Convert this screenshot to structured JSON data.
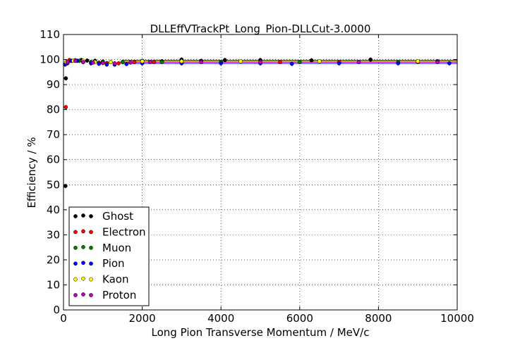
{
  "chart_data": {
    "type": "scatter",
    "title": "DLLEffVTrackPt_Long_Pion-DLLCut-3.0000",
    "xlabel": "Long Pion Transverse Momentum / MeV/c",
    "ylabel": "Efficiency / %",
    "xlim": [
      0,
      10000
    ],
    "ylim": [
      0,
      110
    ],
    "xticks": [
      "0",
      "2000",
      "4000",
      "6000",
      "8000",
      "10000"
    ],
    "yticks": [
      "0",
      "10",
      "20",
      "30",
      "40",
      "50",
      "60",
      "70",
      "80",
      "90",
      "100",
      "110"
    ],
    "grid": true,
    "legend_position": "lower-left",
    "series": [
      {
        "name": "Ghost",
        "color": "#000000",
        "points": [
          [
            50,
            49.5
          ],
          [
            60,
            92.5
          ],
          [
            150,
            99.5
          ],
          [
            300,
            99.7
          ],
          [
            450,
            99.8
          ],
          [
            600,
            99.6
          ],
          [
            800,
            99.5
          ],
          [
            1000,
            99.2
          ],
          [
            1200,
            99.0
          ],
          [
            1500,
            99.0
          ],
          [
            2000,
            99.5
          ],
          [
            2500,
            99.3
          ],
          [
            3000,
            100.0
          ],
          [
            3500,
            99.5
          ],
          [
            4100,
            99.8
          ],
          [
            5000,
            99.8
          ],
          [
            6300,
            99.7
          ],
          [
            7800,
            100.0
          ],
          [
            9500,
            99.3
          ]
        ]
      },
      {
        "name": "Electron",
        "color": "#ff0000",
        "points": [
          [
            60,
            81.0
          ],
          [
            150,
            99.8
          ],
          [
            300,
            99.5
          ],
          [
            500,
            99.0
          ],
          [
            700,
            99.0
          ],
          [
            900,
            98.8
          ],
          [
            1100,
            98.6
          ],
          [
            1400,
            98.5
          ],
          [
            1800,
            99.0
          ],
          [
            2300,
            99.0
          ],
          [
            3000,
            99.0
          ],
          [
            4000,
            99.0
          ],
          [
            5500,
            99.0
          ],
          [
            7000,
            99.0
          ],
          [
            9000,
            99.0
          ]
        ]
      },
      {
        "name": "Muon",
        "color": "#008000",
        "points": [
          [
            80,
            99.0
          ],
          [
            200,
            99.5
          ],
          [
            400,
            99.5
          ],
          [
            700,
            99.0
          ],
          [
            1000,
            99.0
          ],
          [
            1500,
            99.0
          ],
          [
            2500,
            99.0
          ],
          [
            4000,
            99.0
          ],
          [
            6000,
            99.0
          ],
          [
            8500,
            99.0
          ]
        ]
      },
      {
        "name": "Pion",
        "color": "#0000ff",
        "points": [
          [
            40,
            98.0
          ],
          [
            100,
            98.5
          ],
          [
            200,
            99.5
          ],
          [
            350,
            99.5
          ],
          [
            500,
            99.0
          ],
          [
            700,
            98.5
          ],
          [
            900,
            98.3
          ],
          [
            1100,
            98.0
          ],
          [
            1300,
            98.0
          ],
          [
            1600,
            98.2
          ],
          [
            2000,
            98.5
          ],
          [
            3000,
            98.5
          ],
          [
            4000,
            98.5
          ],
          [
            5000,
            98.5
          ],
          [
            5800,
            98.3
          ],
          [
            7000,
            98.5
          ],
          [
            8500,
            98.5
          ],
          [
            9800,
            98.5
          ]
        ]
      },
      {
        "name": "Kaon",
        "color": "#ffff00",
        "points": [
          [
            70,
            99.0
          ],
          [
            250,
            99.5
          ],
          [
            500,
            99.5
          ],
          [
            800,
            99.0
          ],
          [
            1200,
            99.0
          ],
          [
            2000,
            99.3
          ],
          [
            3000,
            99.3
          ],
          [
            4500,
            99.3
          ],
          [
            6500,
            99.3
          ],
          [
            9000,
            99.3
          ]
        ]
      },
      {
        "name": "Proton",
        "color": "#bf00bf",
        "points": [
          [
            100,
            99.0
          ],
          [
            300,
            99.5
          ],
          [
            500,
            99.0
          ],
          [
            750,
            98.8
          ],
          [
            1000,
            98.6
          ],
          [
            1300,
            98.5
          ],
          [
            1700,
            98.8
          ],
          [
            2200,
            99.0
          ],
          [
            3500,
            99.0
          ],
          [
            5000,
            99.0
          ],
          [
            7500,
            99.0
          ],
          [
            9500,
            99.0
          ]
        ]
      }
    ]
  }
}
